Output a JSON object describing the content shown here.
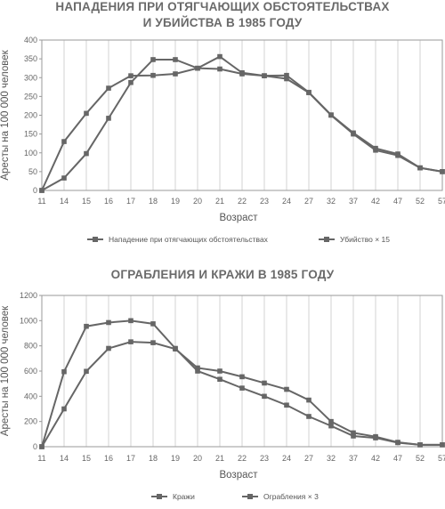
{
  "chart_data": [
    {
      "type": "line",
      "title_lines": [
        "НАПАДЕНИЯ ПРИ ОТЯГЧАЮЩИХ ОБСТОЯТЕЛЬСТВАХ",
        "И УБИЙСТВА В 1985 ГОДУ"
      ],
      "xlabel": "Возраст",
      "ylabel": "Аресты на 100 000 человек",
      "categories": [
        "11",
        "14",
        "15",
        "16",
        "17",
        "18",
        "19",
        "20",
        "21",
        "22",
        "23",
        "24",
        "27",
        "32",
        "37",
        "42",
        "47",
        "52",
        "57"
      ],
      "ylim": [
        0,
        400
      ],
      "yticks": [
        "0",
        "50",
        "100",
        "150",
        "200",
        "250",
        "300",
        "350",
        "400"
      ],
      "grid": "vertical",
      "legend_position": "bottom",
      "series": [
        {
          "name": "Нападение при отягчающих обстоятельствах",
          "color": "#666666",
          "values": [
            0,
            130,
            205,
            272,
            305,
            306,
            310,
            325,
            323,
            310,
            305,
            297,
            260,
            200,
            150,
            107,
            93,
            60,
            50
          ]
        },
        {
          "name": "Убийство × 15",
          "color": "#666666",
          "values": [
            0,
            33,
            98,
            192,
            287,
            348,
            348,
            325,
            356,
            313,
            305,
            306,
            261,
            201,
            153,
            112,
            97,
            60,
            50
          ]
        }
      ]
    },
    {
      "type": "line",
      "title_lines": [
        "ОГРАБЛЕНИЯ И КРАЖИ В 1985 ГОДУ"
      ],
      "xlabel": "Возраст",
      "ylabel": "Аресты на 100 000 человек",
      "categories": [
        "11",
        "14",
        "15",
        "16",
        "17",
        "18",
        "19",
        "20",
        "21",
        "22",
        "23",
        "24",
        "27",
        "32",
        "37",
        "42",
        "47",
        "52",
        "57"
      ],
      "ylim": [
        0,
        1200
      ],
      "yticks": [
        "0",
        "200",
        "400",
        "600",
        "800",
        "1000",
        "1200"
      ],
      "grid": "vertical",
      "legend_position": "bottom",
      "series": [
        {
          "name": "Кражи",
          "color": "#666666",
          "values": [
            0,
            595,
            955,
            985,
            1000,
            975,
            780,
            600,
            535,
            465,
            400,
            330,
            240,
            165,
            85,
            70,
            32,
            15,
            15
          ]
        },
        {
          "name": "Ограбления × 3",
          "color": "#666666",
          "values": [
            0,
            300,
            598,
            780,
            832,
            825,
            775,
            625,
            600,
            555,
            505,
            455,
            370,
            200,
            110,
            80,
            35,
            15,
            15
          ]
        }
      ]
    }
  ]
}
